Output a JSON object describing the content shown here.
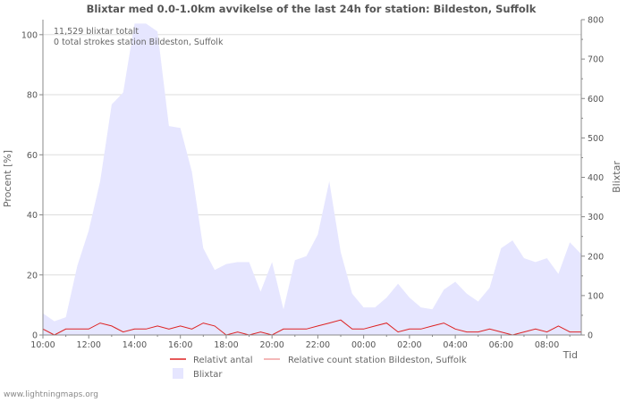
{
  "chart_data": {
    "type": "area",
    "title": "Blixtar med 0.0-1.0km avvikelse of the last 24h for station: Bildeston, Suffolk",
    "ylabel_left": "Procent   [%]",
    "ylabel_right": "Blixtar",
    "xlabel": "Tid",
    "left_ticks": [
      "0",
      "20",
      "40",
      "60",
      "80",
      "100"
    ],
    "right_ticks": [
      "0",
      "100",
      "200",
      "300",
      "400",
      "500",
      "600",
      "700",
      "800"
    ],
    "x_ticks": [
      "10:00",
      "12:00",
      "14:00",
      "16:00",
      "18:00",
      "20:00",
      "22:00",
      "00:00",
      "02:00",
      "04:00",
      "06:00",
      "08:00"
    ],
    "ylim_left": [
      0,
      105
    ],
    "ylim_right": [
      0,
      800
    ],
    "grid": true,
    "annotations": [
      "11,529 blixtar totalt",
      "0 total strokes station Bildeston, Suffolk"
    ],
    "series": [
      {
        "name": "Blixtar",
        "kind": "area",
        "axis": "right",
        "color": "#e6e6ff",
        "values": [
          55,
          35,
          45,
          175,
          265,
          390,
          585,
          615,
          790,
          790,
          770,
          530,
          525,
          415,
          220,
          165,
          180,
          185,
          185,
          110,
          185,
          65,
          190,
          200,
          255,
          390,
          210,
          105,
          70,
          70,
          95,
          130,
          95,
          70,
          65,
          115,
          135,
          105,
          85,
          120,
          220,
          240,
          195,
          185,
          195,
          155,
          235,
          205
        ]
      },
      {
        "name": "Relativt antal",
        "kind": "line",
        "axis": "left",
        "color": "#dd2222",
        "values": [
          2,
          0,
          2,
          2,
          2,
          4,
          3,
          1,
          2,
          2,
          3,
          2,
          3,
          2,
          4,
          3,
          0,
          1,
          0,
          1,
          0,
          2,
          2,
          2,
          3,
          4,
          5,
          2,
          2,
          3,
          4,
          1,
          2,
          2,
          3,
          4,
          2,
          1,
          1,
          2,
          1,
          0,
          1,
          2,
          1,
          3,
          1,
          1
        ]
      },
      {
        "name": "Relative count station Bildeston, Suffolk",
        "kind": "line",
        "axis": "left",
        "color": "#f0a0a0",
        "values": []
      }
    ],
    "legend": [
      {
        "label": "Relativt antal",
        "color": "#dd2222",
        "kind": "line"
      },
      {
        "label": "Relative count station Bildeston, Suffolk",
        "color": "#f0a0a0",
        "kind": "line"
      },
      {
        "label": "Blixtar",
        "color": "#e6e6ff",
        "kind": "swatch"
      }
    ]
  },
  "footer": "www.lightningmaps.org"
}
